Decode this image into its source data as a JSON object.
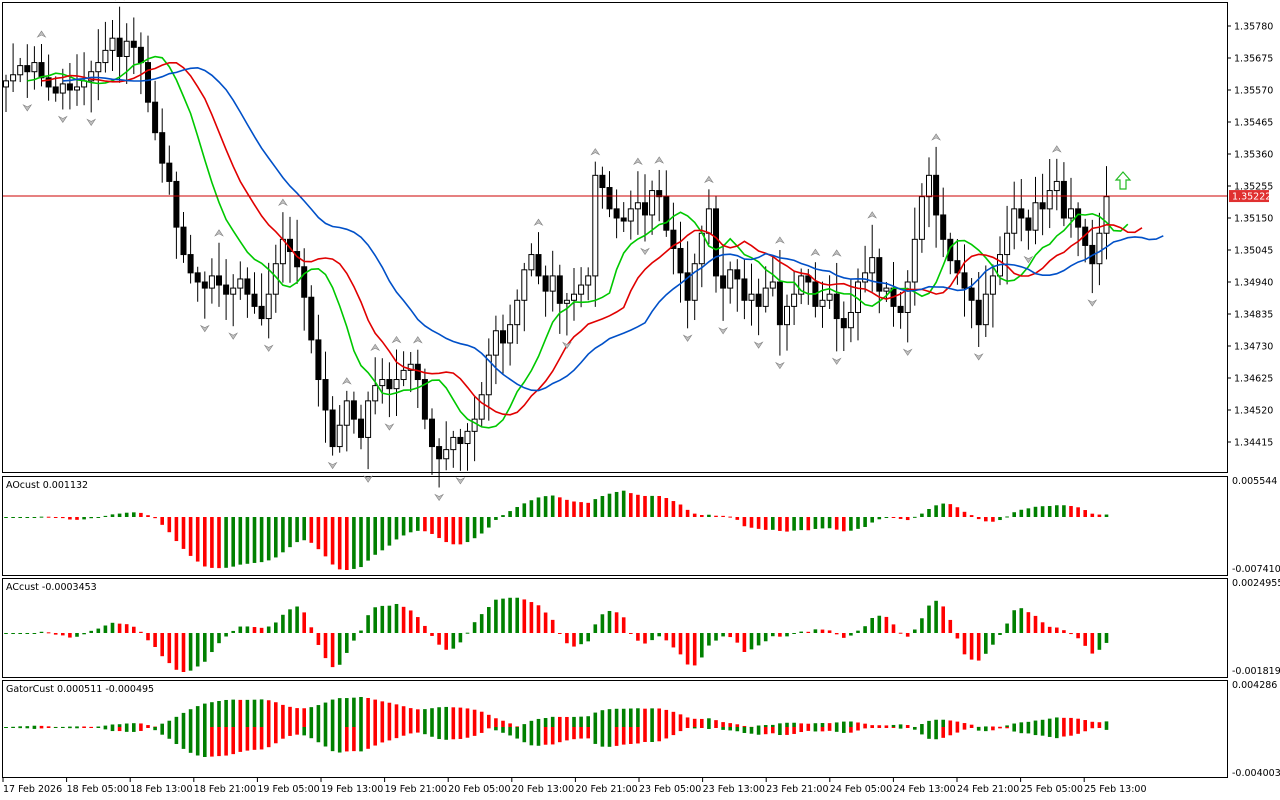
{
  "chart_data": {
    "type": "candlestick",
    "symbol_price": 1.35222,
    "price_axis": {
      "ticks": [
        "1.35780",
        "1.35675",
        "1.35570",
        "1.35465",
        "1.35360",
        "1.35255",
        "1.35150",
        "1.35045",
        "1.34940",
        "1.34835",
        "1.34730",
        "1.34625",
        "1.34520",
        "1.34415"
      ],
      "current_price_label": "1.35222",
      "ylim": [
        1.3434,
        1.3586
      ]
    },
    "time_axis": {
      "ticks": [
        "17 Feb 2026",
        "18 Feb 05:00",
        "18 Feb 13:00",
        "18 Feb 21:00",
        "19 Feb 05:00",
        "19 Feb 13:00",
        "19 Feb 21:00",
        "20 Feb 05:00",
        "20 Feb 13:00",
        "20 Feb 21:00",
        "23 Feb 05:00",
        "23 Feb 13:00",
        "23 Feb 21:00",
        "24 Feb 05:00",
        "24 Feb 13:00",
        "24 Feb 21:00",
        "25 Feb 05:00",
        "25 Feb 13:00"
      ]
    },
    "candles_close": [
      1.356,
      1.3562,
      1.3565,
      1.3563,
      1.3566,
      1.3561,
      1.3558,
      1.3556,
      1.3559,
      1.3557,
      1.3558,
      1.356,
      1.3563,
      1.3566,
      1.357,
      1.3574,
      1.3568,
      1.3573,
      1.3571,
      1.3566,
      1.3553,
      1.3543,
      1.3533,
      1.3527,
      1.3512,
      1.3503,
      1.3497,
      1.3494,
      1.3492,
      1.3496,
      1.3493,
      1.349,
      1.3492,
      1.3495,
      1.349,
      1.3486,
      1.3482,
      1.349,
      1.35,
      1.3508,
      1.3504,
      1.3499,
      1.3489,
      1.3475,
      1.3462,
      1.3452,
      1.344,
      1.3447,
      1.3455,
      1.3449,
      1.3443,
      1.3455,
      1.346,
      1.3462,
      1.3459,
      1.3462,
      1.3465,
      1.3467,
      1.3462,
      1.3449,
      1.344,
      1.3436,
      1.3439,
      1.3443,
      1.3441,
      1.3445,
      1.3449,
      1.3457,
      1.347,
      1.3478,
      1.3474,
      1.348,
      1.3488,
      1.3498,
      1.3503,
      1.3496,
      1.3491,
      1.3496,
      1.3487,
      1.3488,
      1.349,
      1.3493,
      1.3496,
      1.3529,
      1.3525,
      1.3518,
      1.3515,
      1.3514,
      1.3518,
      1.352,
      1.3516,
      1.3524,
      1.3522,
      1.3511,
      1.3505,
      1.3497,
      1.3488,
      1.35,
      1.351,
      1.3518,
      1.3496,
      1.3492,
      1.3498,
      1.3495,
      1.3488,
      1.349,
      1.3486,
      1.3492,
      1.3494,
      1.348,
      1.3486,
      1.349,
      1.3496,
      1.3494,
      1.3486,
      1.3488,
      1.349,
      1.3482,
      1.3479,
      1.3484,
      1.3494,
      1.3497,
      1.3502,
      1.3491,
      1.3492,
      1.3486,
      1.3484,
      1.3494,
      1.3508,
      1.3522,
      1.3529,
      1.3516,
      1.3508,
      1.3501,
      1.3497,
      1.3492,
      1.3488,
      1.348,
      1.349,
      1.3496,
      1.3503,
      1.351,
      1.3518,
      1.3515,
      1.3511,
      1.352,
      1.3518,
      1.3524,
      1.3527,
      1.3515,
      1.3518,
      1.3512,
      1.3506,
      1.35,
      1.351,
      1.3522
    ],
    "ma_lines": [
      {
        "color": "#00c800"
      },
      {
        "color": "#e00000"
      },
      {
        "color": "#0050c8"
      }
    ],
    "subwindows": [
      {
        "label": "AOcust 0.001132",
        "scale_top": "0.005544",
        "scale_bottom": "-0.007410"
      },
      {
        "label": "ACcust -0.0003453",
        "scale_top": "0.0024955",
        "scale_bottom": "-0.0018191"
      },
      {
        "label": "GatorCust 0.000511 -0.000495",
        "scale_top": "0.004286",
        "scale_bottom": "-0.004003"
      }
    ],
    "colors": {
      "up": "#008000",
      "down": "#ff0000",
      "price_line": "#cc0000",
      "current_label_bg": "#e03030"
    }
  }
}
